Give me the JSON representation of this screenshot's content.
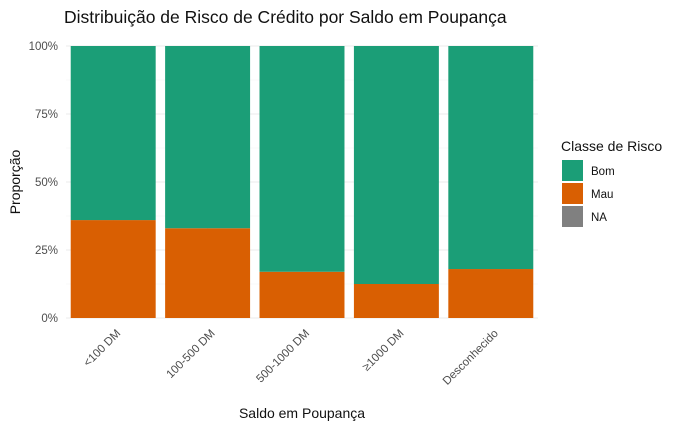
{
  "chart_data": {
    "type": "bar",
    "stacked": "proportion",
    "title": "Distribuição de Risco de Crédito por Saldo em Poupança",
    "xlabel": "Saldo em Poupança",
    "ylabel": "Proporção",
    "ylim": [
      0,
      1
    ],
    "y_ticks": [
      {
        "value": 0,
        "label": "0%"
      },
      {
        "value": 0.25,
        "label": "25%"
      },
      {
        "value": 0.5,
        "label": "50%"
      },
      {
        "value": 0.75,
        "label": "75%"
      },
      {
        "value": 1,
        "label": "100%"
      }
    ],
    "categories": [
      "<100 DM",
      "100-500 DM",
      "500-1000 DM",
      "≥1000 DM",
      "Desconhecido"
    ],
    "series": [
      {
        "name": "Bom",
        "color": "#1b9e77",
        "values": [
          0.64,
          0.67,
          0.83,
          0.875,
          0.82
        ]
      },
      {
        "name": "Mau",
        "color": "#d95f02",
        "values": [
          0.36,
          0.33,
          0.17,
          0.125,
          0.18
        ]
      },
      {
        "name": "NA",
        "color": "#808080",
        "values": [
          0,
          0,
          0,
          0,
          0
        ]
      }
    ],
    "legend": {
      "title": "Classe de Risco",
      "position": "right"
    },
    "grid": true
  }
}
